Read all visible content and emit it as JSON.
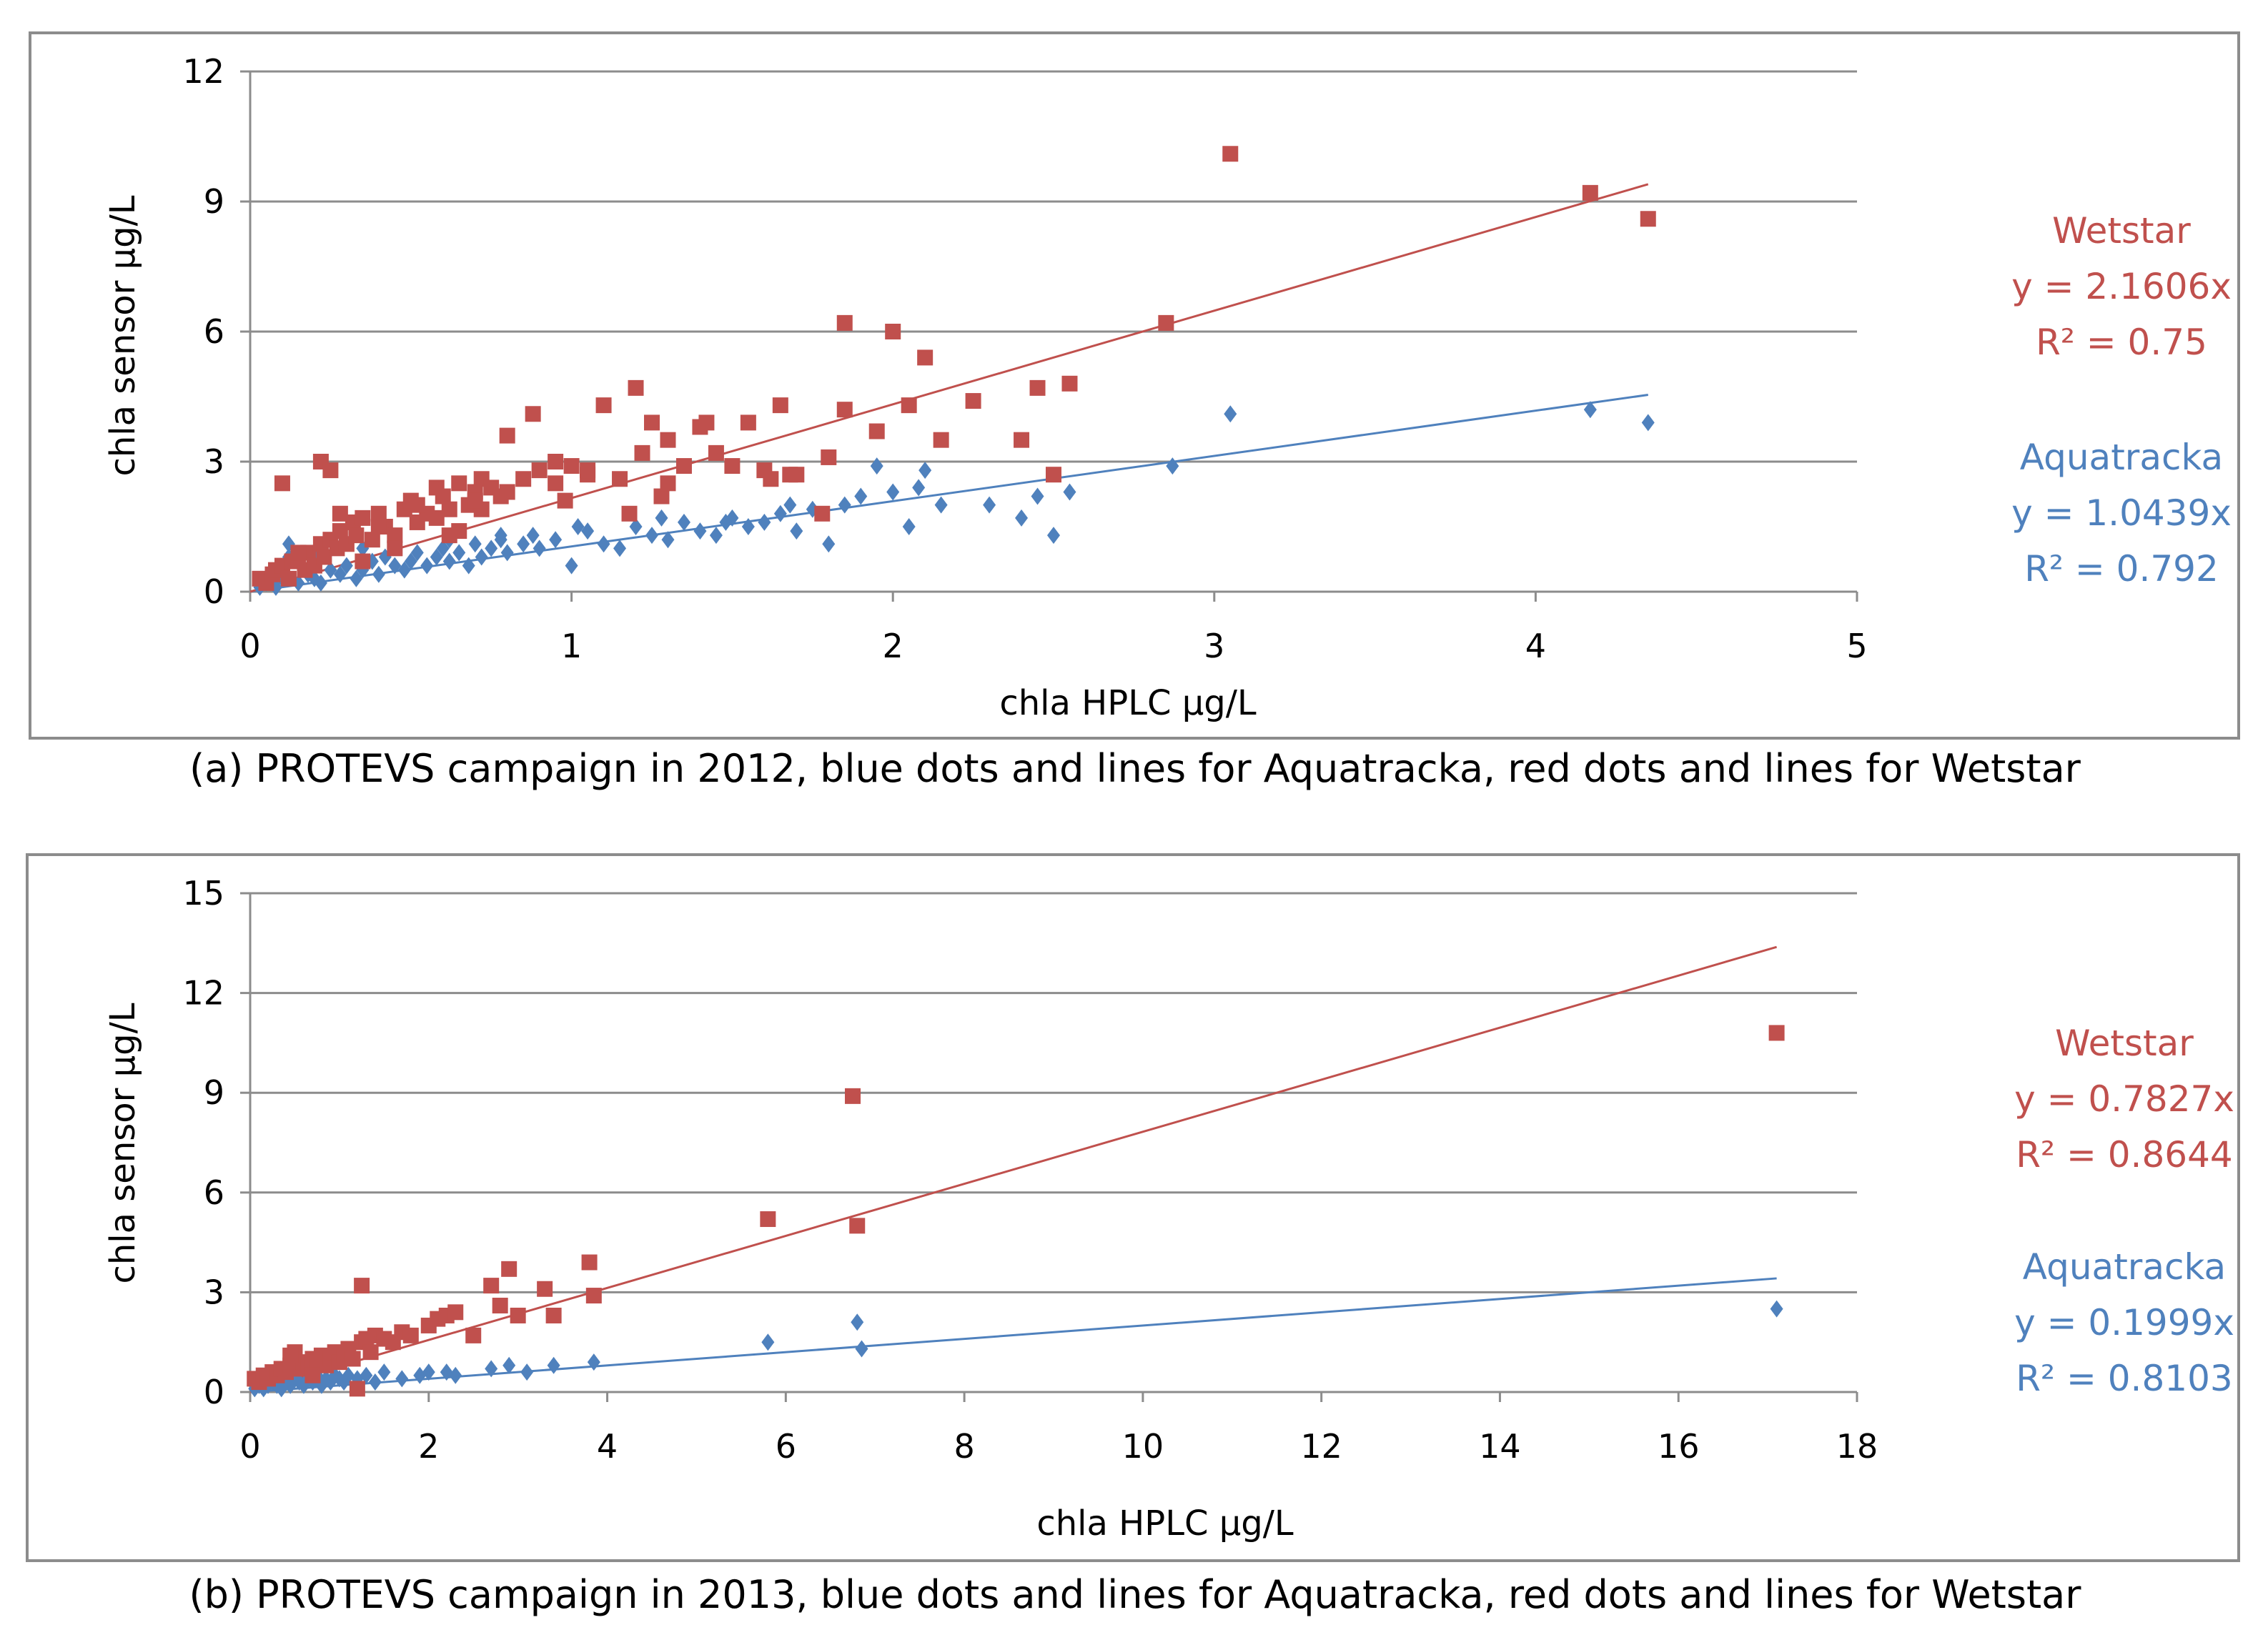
{
  "chart_data": [
    {
      "type": "scatter",
      "caption": "(a) PROTEVS campaign in 2012,  blue dots and lines for Aquatracka, red dots and lines for Wetstar",
      "xlabel": "chla HPLC µg/L",
      "ylabel": "chla sensor µg/L",
      "xlim": [
        0,
        5
      ],
      "ylim": [
        0,
        12
      ],
      "xticks": [
        "0",
        "1",
        "2",
        "3",
        "4",
        "5"
      ],
      "yticks": [
        "0",
        "3",
        "6",
        "9",
        "12"
      ],
      "grid": "horizontal",
      "series": [
        {
          "name": "Wetstar",
          "color": "#c0504d",
          "marker": "square",
          "equation": "y = 2.1606x",
          "r2": "R² = 0.75",
          "trend_slope": 2.1606,
          "trend_x": [
            0,
            4.35
          ],
          "x": [
            0.03,
            0.05,
            0.07,
            0.08,
            0.1,
            0.12,
            0.13,
            0.15,
            0.17,
            0.18,
            0.2,
            0.22,
            0.23,
            0.25,
            0.27,
            0.28,
            0.3,
            0.32,
            0.33,
            0.35,
            0.38,
            0.4,
            0.42,
            0.45,
            0.48,
            0.5,
            0.52,
            0.55,
            0.58,
            0.6,
            0.62,
            0.65,
            0.68,
            0.7,
            0.72,
            0.75,
            0.78,
            0.8,
            0.85,
            0.88,
            0.9,
            0.95,
            0.98,
            1.0,
            1.05,
            1.1,
            1.15,
            1.2,
            1.25,
            1.28,
            1.3,
            1.35,
            1.4,
            1.45,
            1.5,
            1.55,
            1.6,
            1.65,
            1.7,
            1.8,
            1.85,
            1.95,
            2.0,
            2.05,
            2.1,
            2.15,
            2.25,
            2.4,
            2.45,
            2.5,
            2.55,
            2.85,
            3.05,
            4.17,
            4.35,
            0.1,
            0.22,
            0.25,
            0.15,
            0.28,
            0.35,
            0.45,
            0.58,
            0.65,
            0.72,
            0.8,
            0.95,
            1.05,
            1.18,
            1.22,
            1.3,
            1.42,
            1.62,
            1.68,
            1.78,
            1.85,
            0.4,
            0.52,
            0.62,
            0.7
          ],
          "y": [
            0.3,
            0.2,
            0.4,
            0.5,
            0.6,
            0.3,
            0.7,
            0.8,
            0.5,
            0.9,
            0.6,
            1.1,
            0.8,
            1.2,
            1.0,
            1.4,
            1.1,
            1.6,
            1.3,
            1.7,
            1.2,
            1.8,
            1.5,
            1.3,
            1.9,
            2.1,
            1.6,
            1.8,
            2.4,
            2.2,
            1.9,
            2.5,
            2.0,
            2.3,
            2.6,
            2.4,
            2.2,
            3.6,
            2.6,
            4.1,
            2.8,
            3.0,
            2.1,
            2.9,
            2.7,
            4.3,
            2.6,
            4.7,
            3.9,
            2.2,
            2.5,
            2.9,
            3.8,
            3.2,
            2.9,
            3.9,
            2.8,
            4.3,
            2.7,
            3.1,
            6.2,
            3.7,
            6.0,
            4.3,
            5.4,
            3.5,
            4.4,
            3.5,
            4.7,
            2.7,
            4.8,
            6.2,
            10.1,
            9.2,
            8.6,
            2.5,
            3.0,
            2.8,
            0.9,
            1.8,
            0.7,
            1.0,
            1.7,
            1.4,
            1.9,
            2.3,
            2.5,
            2.8,
            1.8,
            3.2,
            3.5,
            3.9,
            2.6,
            2.7,
            1.8,
            4.2,
            1.5,
            2.0,
            1.3,
            2.1
          ]
        },
        {
          "name": "Aquatracka",
          "color": "#4f81bd",
          "marker": "diamond",
          "equation": "y = 1.0439x",
          "r2": "R² = 0.792",
          "trend_slope": 1.0439,
          "trend_x": [
            0,
            4.35
          ],
          "x": [
            0.03,
            0.05,
            0.08,
            0.1,
            0.12,
            0.15,
            0.18,
            0.2,
            0.22,
            0.25,
            0.28,
            0.3,
            0.33,
            0.35,
            0.38,
            0.4,
            0.42,
            0.45,
            0.48,
            0.5,
            0.52,
            0.55,
            0.58,
            0.6,
            0.62,
            0.65,
            0.68,
            0.7,
            0.72,
            0.75,
            0.78,
            0.8,
            0.85,
            0.88,
            0.9,
            0.95,
            1.0,
            1.05,
            1.1,
            1.15,
            1.2,
            1.25,
            1.3,
            1.35,
            1.4,
            1.45,
            1.5,
            1.55,
            1.6,
            1.65,
            1.7,
            1.75,
            1.8,
            1.85,
            1.95,
            2.0,
            2.05,
            2.1,
            2.15,
            2.3,
            2.4,
            2.45,
            2.5,
            2.55,
            2.87,
            3.05,
            4.17,
            4.35,
            0.12,
            0.2,
            0.35,
            0.45,
            0.62,
            0.78,
            1.02,
            1.28,
            1.48,
            1.68,
            1.9,
            2.08
          ],
          "y": [
            0.1,
            0.2,
            0.1,
            0.3,
            1.1,
            0.2,
            0.4,
            0.3,
            0.2,
            0.5,
            0.4,
            0.6,
            0.3,
            0.5,
            0.7,
            0.4,
            0.8,
            0.6,
            0.5,
            0.7,
            0.9,
            0.6,
            0.8,
            1.0,
            0.7,
            0.9,
            0.6,
            1.1,
            0.8,
            1.0,
            1.2,
            0.9,
            1.1,
            1.3,
            1.0,
            1.2,
            0.6,
            1.4,
            1.1,
            1.0,
            1.5,
            1.3,
            1.2,
            1.6,
            1.4,
            1.3,
            1.7,
            1.5,
            1.6,
            1.8,
            1.4,
            1.9,
            1.1,
            2.0,
            2.9,
            2.3,
            1.5,
            2.8,
            2.0,
            2.0,
            1.7,
            2.2,
            1.3,
            2.3,
            2.9,
            4.1,
            4.2,
            3.9,
            0.8,
            0.9,
            1.0,
            1.1,
            1.2,
            1.3,
            1.5,
            1.7,
            1.6,
            2.0,
            2.2,
            2.4
          ]
        }
      ]
    },
    {
      "type": "scatter",
      "caption": "(b) PROTEVS campaign in 2013,  blue dots and lines for Aquatracka, red dots and lines for Wetstar",
      "xlabel": "chla HPLC µg/L",
      "ylabel": "chla sensor µg/L",
      "xlim": [
        0,
        18
      ],
      "ylim": [
        0,
        15
      ],
      "xticks": [
        "0",
        "2",
        "4",
        "6",
        "8",
        "10",
        "12",
        "14",
        "16",
        "18"
      ],
      "yticks": [
        "0",
        "3",
        "6",
        "9",
        "12",
        "15"
      ],
      "grid": "horizontal",
      "series": [
        {
          "name": "Wetstar",
          "color": "#c0504d",
          "marker": "square",
          "equation": "y = 0.7827x",
          "r2": "R² = 0.8644",
          "trend_slope": 0.7827,
          "trend_x": [
            0,
            17.1
          ],
          "x": [
            0.05,
            0.1,
            0.15,
            0.2,
            0.25,
            0.3,
            0.35,
            0.4,
            0.45,
            0.5,
            0.55,
            0.6,
            0.65,
            0.7,
            0.75,
            0.8,
            0.85,
            0.9,
            0.95,
            1.0,
            1.05,
            1.1,
            1.15,
            1.2,
            1.25,
            1.3,
            1.35,
            1.4,
            1.5,
            1.6,
            1.7,
            1.8,
            2.0,
            2.1,
            2.2,
            2.3,
            2.5,
            2.7,
            2.8,
            2.9,
            3.0,
            3.3,
            3.4,
            3.8,
            3.85,
            5.8,
            6.75,
            6.8,
            17.1,
            1.25,
            0.45,
            0.7
          ],
          "y": [
            0.4,
            0.3,
            0.5,
            0.4,
            0.6,
            0.5,
            0.7,
            0.6,
            0.8,
            1.2,
            0.7,
            0.9,
            0.8,
            1.0,
            0.9,
            1.1,
            0.8,
            1.0,
            1.2,
            0.9,
            1.1,
            1.3,
            1.0,
            0.1,
            1.5,
            1.6,
            1.2,
            1.7,
            1.6,
            1.5,
            1.8,
            1.7,
            2.0,
            2.2,
            2.3,
            2.4,
            1.7,
            3.2,
            2.6,
            3.7,
            2.3,
            3.1,
            2.3,
            3.9,
            2.9,
            5.2,
            8.9,
            5.0,
            10.8,
            3.2,
            1.1,
            0.5
          ]
        },
        {
          "name": "Aquatracka",
          "color": "#4f81bd",
          "marker": "diamond",
          "equation": "y = 0.1999x",
          "r2": "R² = 0.8103",
          "trend_slope": 0.1999,
          "trend_x": [
            0,
            17.1
          ],
          "x": [
            0.05,
            0.1,
            0.15,
            0.2,
            0.25,
            0.3,
            0.35,
            0.4,
            0.45,
            0.5,
            0.55,
            0.6,
            0.65,
            0.7,
            0.75,
            0.8,
            0.85,
            0.9,
            0.95,
            1.0,
            1.05,
            1.1,
            1.2,
            1.3,
            1.4,
            1.5,
            1.7,
            1.9,
            2.0,
            2.2,
            2.3,
            2.7,
            2.9,
            3.1,
            3.4,
            3.85,
            5.8,
            6.8,
            6.85,
            17.1
          ],
          "y": [
            0.1,
            0.2,
            0.1,
            0.2,
            0.3,
            0.2,
            0.1,
            0.3,
            0.2,
            0.4,
            0.3,
            0.2,
            0.4,
            0.3,
            0.5,
            0.2,
            0.4,
            0.3,
            0.5,
            0.4,
            0.3,
            0.5,
            0.4,
            0.5,
            0.3,
            0.6,
            0.4,
            0.5,
            0.6,
            0.6,
            0.5,
            0.7,
            0.8,
            0.6,
            0.8,
            0.9,
            1.5,
            2.1,
            1.3,
            2.5
          ]
        }
      ]
    }
  ]
}
